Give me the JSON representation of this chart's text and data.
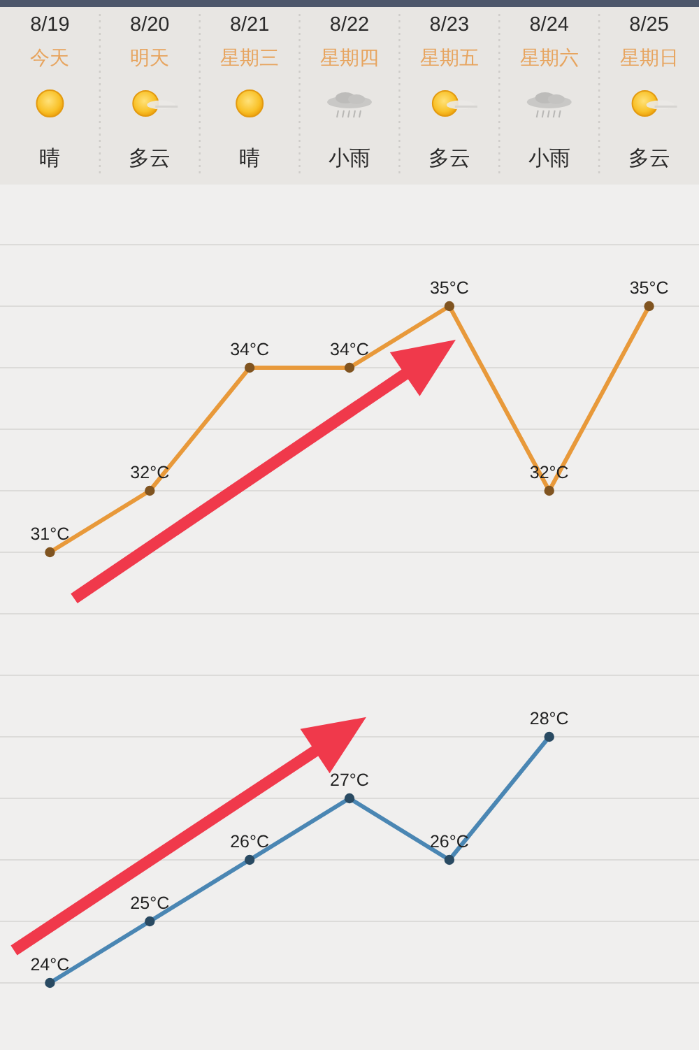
{
  "chart_data": {
    "type": "line",
    "categories": [
      "8/19\n今天",
      "8/20\n明天",
      "8/21\n星期三",
      "8/22\n星期四",
      "8/23\n星期五",
      "8/24\n星期六",
      "8/25\n星期日"
    ],
    "annotations": [
      "晴",
      "多云",
      "晴",
      "小雨",
      "多云",
      "小雨",
      "多云"
    ],
    "series": [
      {
        "color": "#e8993a",
        "values": [
          31,
          32,
          34,
          34,
          35,
          32,
          35
        ],
        "value_labels": [
          "31°C",
          "32°C",
          "34°C",
          "34°C",
          "35°C",
          "32°C",
          "35°C"
        ]
      },
      {
        "color": "#4a86b3",
        "values": [
          24,
          25,
          26,
          27,
          26,
          28,
          null
        ],
        "value_labels": [
          "24°C",
          "25°C",
          "26°C",
          "27°C",
          "26°C",
          "28°C",
          null
        ]
      }
    ],
    "yticks": [
      {
        "value": 24,
        "label": null
      },
      {
        "value": 25,
        "label": null
      },
      {
        "value": 26,
        "label": null
      },
      {
        "value": 27,
        "label": null
      },
      {
        "value": 28,
        "label": null
      },
      {
        "value": 29,
        "label": null
      },
      {
        "value": 30,
        "label": null
      },
      {
        "value": 31,
        "label": null
      },
      {
        "value": 32,
        "label": null
      },
      {
        "value": 33,
        "label": null
      },
      {
        "value": 34,
        "label": null
      },
      {
        "value": 35,
        "label": null
      },
      {
        "value": 36,
        "label": null
      }
    ],
    "grid": "y",
    "tick_labels": "x",
    "marker": "circle",
    "line_style": "solid"
  }
}
